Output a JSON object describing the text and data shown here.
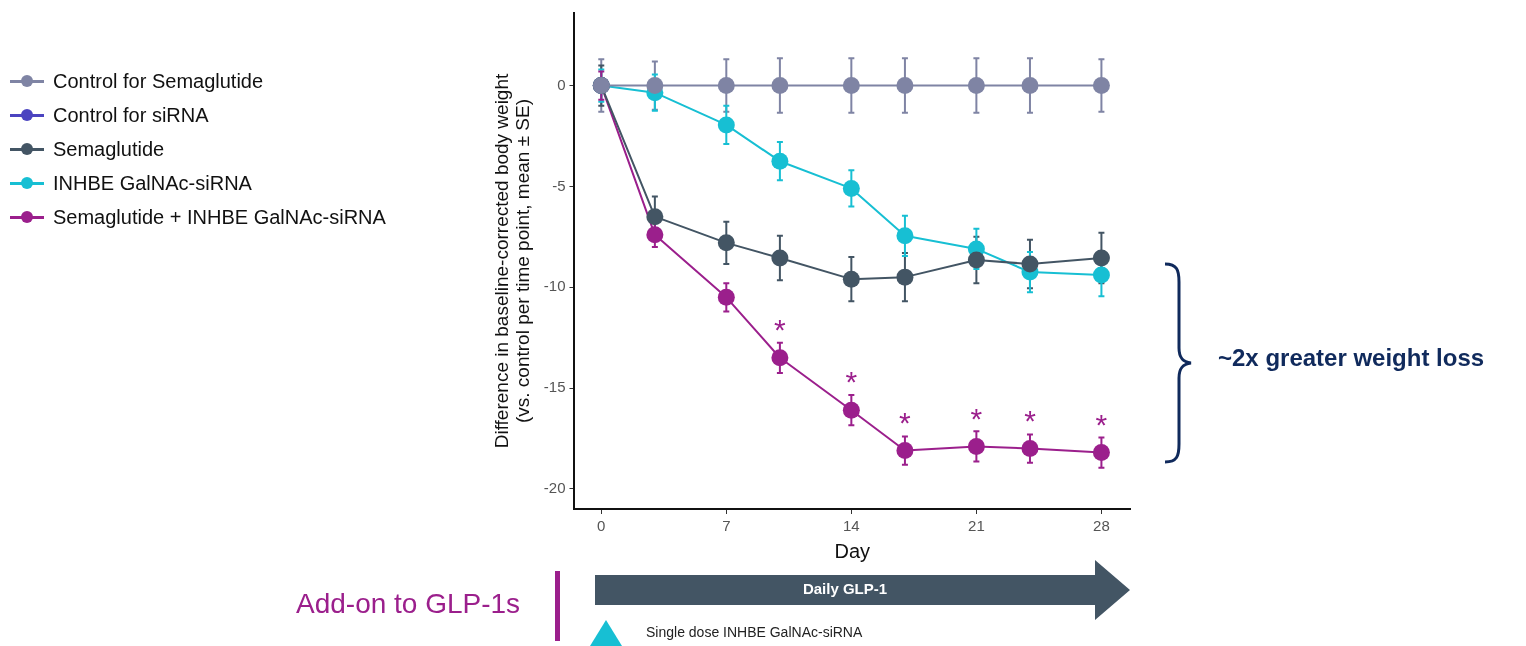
{
  "chart_data": {
    "type": "line",
    "xlabel": "Day",
    "ylabel": "Difference in baseline-corrected body weight\n(vs. control per time point, mean ± SE)",
    "x": [
      0,
      3,
      7,
      10,
      14,
      17,
      21,
      24,
      28
    ],
    "series": [
      {
        "name": "Control for Semaglutide",
        "color": "#7f84a4",
        "values": [
          0,
          0,
          0,
          0,
          0,
          0,
          0,
          0,
          0
        ],
        "errors": [
          1.3,
          1.2,
          1.3,
          1.35,
          1.35,
          1.35,
          1.35,
          1.35,
          1.3
        ]
      },
      {
        "name": "Control for siRNA",
        "color": "#4b44c0",
        "values": [
          null,
          null,
          null,
          null,
          null,
          null,
          null,
          null,
          null
        ]
      },
      {
        "name": "Semaglutide",
        "color": "#435564",
        "values": [
          0,
          -6.5,
          -7.8,
          -8.55,
          -9.6,
          -9.5,
          -8.65,
          -8.85,
          -8.55
        ],
        "errors": [
          1.0,
          1.0,
          1.05,
          1.1,
          1.1,
          1.2,
          1.15,
          1.2,
          1.25
        ]
      },
      {
        "name": "INHBE GalNAc-siRNA",
        "color": "#17bfd3",
        "values": [
          0,
          -0.35,
          -1.95,
          -3.75,
          -5.1,
          -7.45,
          -8.1,
          -9.25,
          -9.4
        ],
        "errors": [
          0.8,
          0.9,
          0.95,
          0.95,
          0.9,
          1.0,
          1.0,
          1.0,
          1.05
        ]
      },
      {
        "name": "Semaglutide + INHBE GalNAc-siRNA",
        "color": "#9b1f8c",
        "values": [
          0,
          -7.4,
          -10.5,
          -13.5,
          -16.1,
          -18.1,
          -17.9,
          -18.0,
          -18.2
        ],
        "errors": [
          0.7,
          0.6,
          0.7,
          0.75,
          0.75,
          0.7,
          0.75,
          0.7,
          0.75
        ]
      }
    ],
    "xlim": [
      -1.5,
      29.6
    ],
    "xticks": [
      0,
      7,
      14,
      21,
      28
    ],
    "ylim": [
      -21,
      3.6
    ],
    "yticks": [
      0,
      -5,
      -10,
      -15,
      -20
    ],
    "grid": false,
    "legend": "left",
    "marker": "circle",
    "line_style": "solid",
    "annotations": [
      {
        "text": "*",
        "x": 10,
        "y": -13.5
      },
      {
        "text": "*",
        "x": 14,
        "y": -16.1
      },
      {
        "text": "*",
        "x": 17,
        "y": -18.1
      },
      {
        "text": "*",
        "x": 21,
        "y": -17.9
      },
      {
        "text": "*",
        "x": 24,
        "y": -18.0
      },
      {
        "text": "*",
        "x": 28,
        "y": -18.2
      },
      "~2x greater weight loss",
      "Add-on to GLP-1s",
      "Daily GLP-1",
      "Single dose INHBE GalNAc-siRNA"
    ]
  }
}
